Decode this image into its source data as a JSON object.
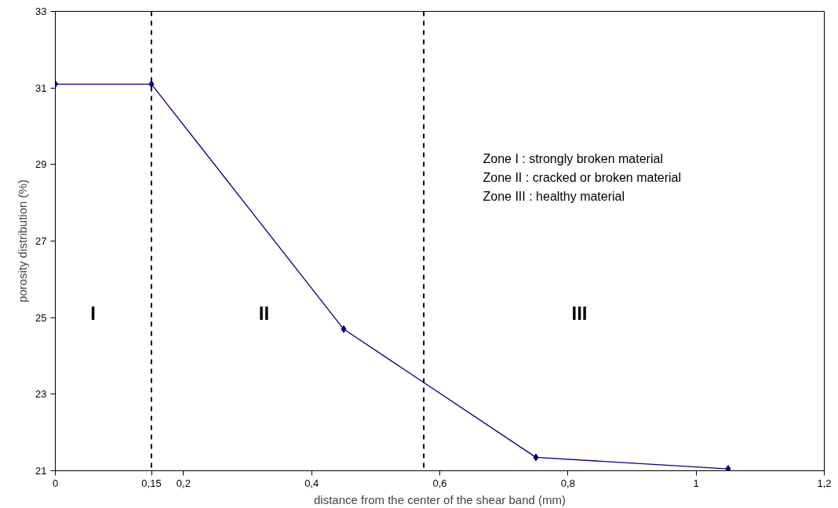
{
  "chart_data": {
    "type": "line",
    "xlabel": "distance from the center of the shear band (mm)",
    "ylabel": "porosity distribution (%)",
    "x": [
      0,
      0.15,
      0.45,
      0.75,
      1.05
    ],
    "series": [
      {
        "color": "#000080",
        "values": [
          31.1,
          31.1,
          24.7,
          21.35,
          21.05
        ]
      }
    ],
    "xlim": [
      0,
      1.2
    ],
    "xticks": [
      {
        "value": 0,
        "label": "0"
      },
      {
        "value": 0.15,
        "label": "0,15"
      },
      {
        "value": 0.2,
        "label": "0,2"
      },
      {
        "value": 0.4,
        "label": "0,4"
      },
      {
        "value": 0.6,
        "label": "0,6"
      },
      {
        "value": 0.8,
        "label": "0,8"
      },
      {
        "value": 1,
        "label": "1"
      },
      {
        "value": 1.2,
        "label": "1,2"
      }
    ],
    "ylim": [
      21,
      33
    ],
    "yticks": [
      21,
      23,
      25,
      27,
      29,
      31,
      33
    ],
    "ref_lines": [
      {
        "axis": "x",
        "value": 0.15,
        "color": "#000000",
        "line_style": "dashed"
      },
      {
        "axis": "x",
        "value": 0.575,
        "color": "#000000",
        "line_style": "dashed"
      }
    ],
    "annotations": [
      "I",
      "II",
      "III",
      "Zone I : strongly broken material",
      "Zone II : cracked or broken material",
      "Zone III : healthy material"
    ],
    "marker": "diamond",
    "line_style": "solid",
    "grid": false
  }
}
